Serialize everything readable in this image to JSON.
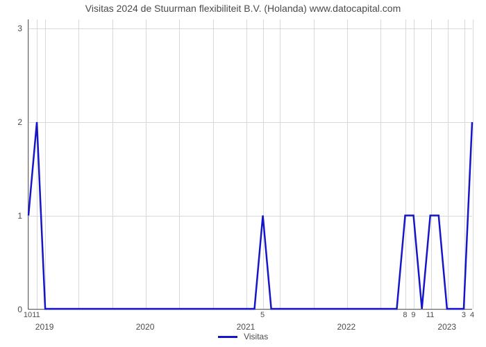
{
  "chart": {
    "type": "line",
    "title": "Visitas 2024 de Stuurman flexibiliteit B.V. (Holanda) www.datocapital.com",
    "background_color": "#ffffff",
    "grid_color": "#d9d9d9",
    "axis_color": "#666666",
    "line_color": "#1515c9",
    "line_width": 2.5,
    "title_fontsize": 14,
    "label_fontsize": 12,
    "legend_label": "Visitas",
    "x": {
      "min": 0,
      "max": 53,
      "year_ticks": [
        {
          "pos": 2,
          "label": "2019"
        },
        {
          "pos": 14,
          "label": "2020"
        },
        {
          "pos": 26,
          "label": "2021"
        },
        {
          "pos": 38,
          "label": "2022"
        },
        {
          "pos": 50,
          "label": "2023"
        }
      ],
      "month_ticks": [
        {
          "pos": 0,
          "label": "10"
        },
        {
          "pos": 1,
          "label": "11"
        },
        {
          "pos": 28,
          "label": "5"
        },
        {
          "pos": 45,
          "label": "8"
        },
        {
          "pos": 46,
          "label": "9"
        },
        {
          "pos": 48,
          "label": "11"
        },
        {
          "pos": 52,
          "label": "3"
        },
        {
          "pos": 53,
          "label": "4"
        }
      ],
      "minor_grid": [
        0,
        1,
        2,
        6,
        10,
        14,
        18,
        22,
        26,
        28,
        30,
        34,
        38,
        42,
        45,
        46,
        48,
        50,
        52,
        53
      ]
    },
    "y": {
      "min": 0,
      "max": 3.1,
      "ticks": [
        {
          "pos": 0,
          "label": "0"
        },
        {
          "pos": 1,
          "label": "1"
        },
        {
          "pos": 2,
          "label": "2"
        },
        {
          "pos": 3,
          "label": "3"
        }
      ]
    },
    "series": {
      "name": "Visitas",
      "points": [
        [
          0,
          1
        ],
        [
          1,
          2
        ],
        [
          2,
          0
        ],
        [
          3,
          0
        ],
        [
          4,
          0
        ],
        [
          5,
          0
        ],
        [
          6,
          0
        ],
        [
          7,
          0
        ],
        [
          8,
          0
        ],
        [
          9,
          0
        ],
        [
          10,
          0
        ],
        [
          11,
          0
        ],
        [
          12,
          0
        ],
        [
          13,
          0
        ],
        [
          14,
          0
        ],
        [
          15,
          0
        ],
        [
          16,
          0
        ],
        [
          17,
          0
        ],
        [
          18,
          0
        ],
        [
          19,
          0
        ],
        [
          20,
          0
        ],
        [
          21,
          0
        ],
        [
          22,
          0
        ],
        [
          23,
          0
        ],
        [
          24,
          0
        ],
        [
          25,
          0
        ],
        [
          26,
          0
        ],
        [
          27,
          0
        ],
        [
          28,
          1
        ],
        [
          29,
          0
        ],
        [
          30,
          0
        ],
        [
          31,
          0
        ],
        [
          32,
          0
        ],
        [
          33,
          0
        ],
        [
          34,
          0
        ],
        [
          35,
          0
        ],
        [
          36,
          0
        ],
        [
          37,
          0
        ],
        [
          38,
          0
        ],
        [
          39,
          0
        ],
        [
          40,
          0
        ],
        [
          41,
          0
        ],
        [
          42,
          0
        ],
        [
          43,
          0
        ],
        [
          44,
          0
        ],
        [
          45,
          1
        ],
        [
          46,
          1
        ],
        [
          47,
          0
        ],
        [
          48,
          1
        ],
        [
          49,
          1
        ],
        [
          50,
          0
        ],
        [
          51,
          0
        ],
        [
          52,
          0
        ],
        [
          53,
          2
        ]
      ]
    }
  }
}
